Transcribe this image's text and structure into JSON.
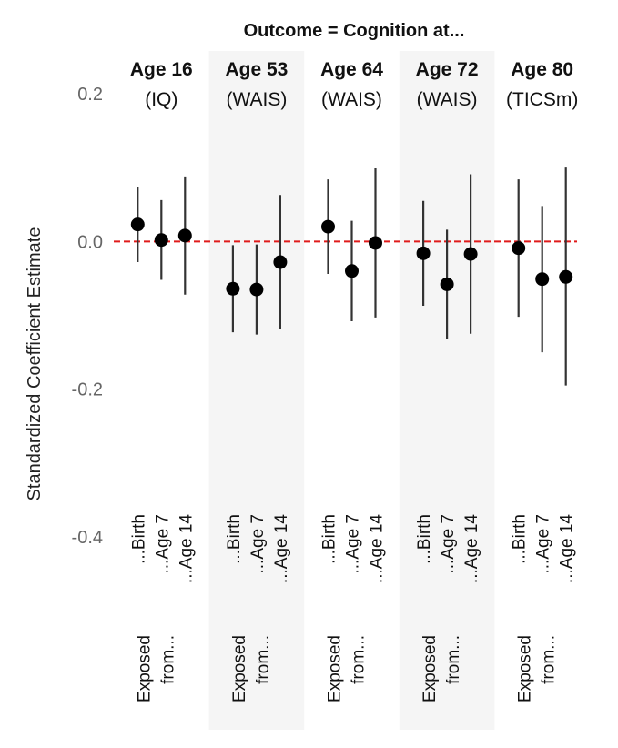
{
  "chart_data": {
    "type": "scatter",
    "title": "Outcome = Cognition at...",
    "ylabel": "Standardized Coefficient Estimate",
    "ylim": [
      -0.4,
      0.2
    ],
    "yticks": [
      0.2,
      0.0,
      -0.2,
      -0.4
    ],
    "ytick_labels": [
      "0.2",
      "0.0",
      "-0.2",
      "-0.4"
    ],
    "reference_line": {
      "y": 0.0,
      "color": "#e01b1b",
      "style": "dashed"
    },
    "shaded_panels": [
      1,
      3
    ],
    "categories": [
      "...Birth",
      "...Age 7",
      "...Age 14"
    ],
    "bottom_label": [
      "Exposed",
      "from..."
    ],
    "panels": [
      {
        "title": "Age 16",
        "subtitle": "(IQ)",
        "points": [
          {
            "x": "...Birth",
            "est": 0.023,
            "lo": -0.028,
            "hi": 0.074
          },
          {
            "x": "...Age 7",
            "est": 0.002,
            "lo": -0.052,
            "hi": 0.056
          },
          {
            "x": "...Age 14",
            "est": 0.008,
            "lo": -0.072,
            "hi": 0.088
          }
        ]
      },
      {
        "title": "Age 53",
        "subtitle": "(WAIS)",
        "points": [
          {
            "x": "...Birth",
            "est": -0.064,
            "lo": -0.123,
            "hi": -0.005
          },
          {
            "x": "...Age 7",
            "est": -0.065,
            "lo": -0.126,
            "hi": -0.004
          },
          {
            "x": "...Age 14",
            "est": -0.028,
            "lo": -0.118,
            "hi": 0.063
          }
        ]
      },
      {
        "title": "Age 64",
        "subtitle": "(WAIS)",
        "points": [
          {
            "x": "...Birth",
            "est": 0.02,
            "lo": -0.044,
            "hi": 0.084
          },
          {
            "x": "...Age 7",
            "est": -0.04,
            "lo": -0.108,
            "hi": 0.028
          },
          {
            "x": "...Age 14",
            "est": -0.002,
            "lo": -0.103,
            "hi": 0.099
          }
        ]
      },
      {
        "title": "Age 72",
        "subtitle": "(WAIS)",
        "points": [
          {
            "x": "...Birth",
            "est": -0.016,
            "lo": -0.087,
            "hi": 0.055
          },
          {
            "x": "...Age 7",
            "est": -0.058,
            "lo": -0.132,
            "hi": 0.016
          },
          {
            "x": "...Age 14",
            "est": -0.017,
            "lo": -0.125,
            "hi": 0.091
          }
        ]
      },
      {
        "title": "Age 80",
        "subtitle": "(TICSm)",
        "points": [
          {
            "x": "...Birth",
            "est": -0.009,
            "lo": -0.102,
            "hi": 0.084
          },
          {
            "x": "...Age 7",
            "est": -0.051,
            "lo": -0.15,
            "hi": 0.048
          },
          {
            "x": "...Age 14",
            "est": -0.048,
            "lo": -0.195,
            "hi": 0.1
          }
        ]
      }
    ]
  }
}
